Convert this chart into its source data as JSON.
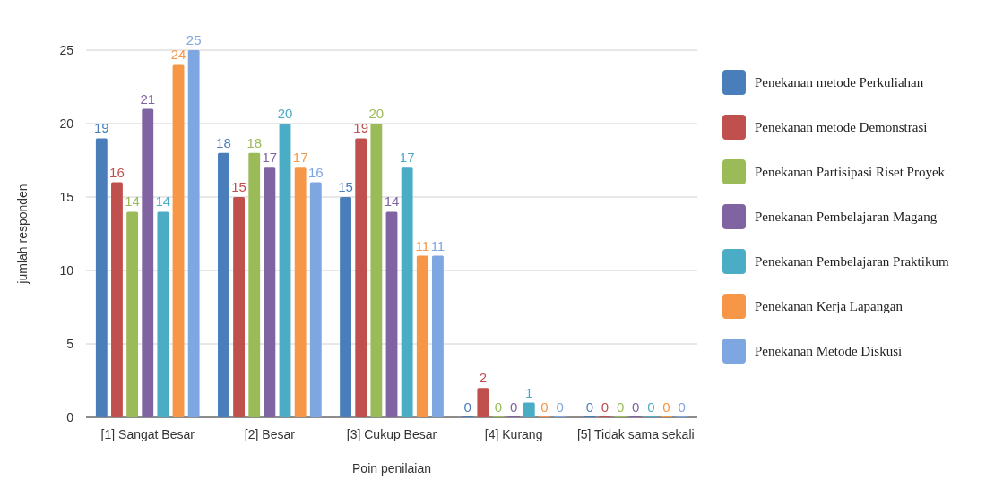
{
  "chart_data": {
    "type": "bar",
    "xlabel": "Poin penilaian",
    "ylabel": "jumlah responden",
    "categories": [
      "[1] Sangat Besar",
      "[2] Besar",
      "[3] Cukup Besar",
      "[4] Kurang",
      "[5] Tidak sama sekali"
    ],
    "series": [
      {
        "name": "Penekanan metode Perkuliahan",
        "color": "#4a7ebb",
        "values": [
          19,
          18,
          15,
          0,
          0
        ]
      },
      {
        "name": "Penekanan metode Demonstrasi",
        "color": "#c0504d",
        "values": [
          16,
          15,
          19,
          2,
          0
        ]
      },
      {
        "name": "Penekanan Partisipasi Riset Proyek",
        "color": "#9bbb59",
        "values": [
          14,
          18,
          20,
          0,
          0
        ]
      },
      {
        "name": "Penekanan Pembelajaran Magang",
        "color": "#8064a2",
        "values": [
          21,
          17,
          14,
          0,
          0
        ]
      },
      {
        "name": "Penekanan Pembelajaran Praktikum",
        "color": "#4bacc6",
        "values": [
          14,
          20,
          17,
          1,
          0
        ]
      },
      {
        "name": "Penekanan Kerja Lapangan",
        "color": "#f79646",
        "values": [
          24,
          17,
          11,
          0,
          0
        ]
      },
      {
        "name": "Penekanan Metode Diskusi",
        "color": "#7ea6e0",
        "values": [
          25,
          16,
          11,
          0,
          0
        ]
      }
    ],
    "ylim": [
      0,
      25
    ],
    "yticks": [
      0,
      5,
      10,
      15,
      20,
      25
    ],
    "grid": "y",
    "legend": "right",
    "data_labels": true
  }
}
